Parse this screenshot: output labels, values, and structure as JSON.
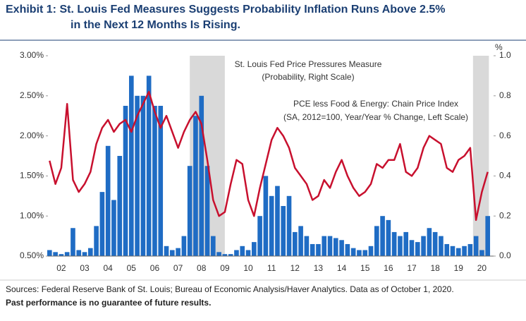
{
  "chart_data": {
    "type": "combo",
    "title_lines": [
      "Exhibit 1: St. Louis Fed Measures Suggests Probability Inflation Runs Above 2.5%",
      "in the Next 12 Months Is Rising."
    ],
    "annotations": [
      [
        "St. Louis Fed Price Pressures Measure",
        "(Probability, Right Scale)"
      ],
      [
        "PCE less Food & Energy: Chain Price Index",
        "(SA, 2012=100, Year/Year % Change, Left Scale)"
      ]
    ],
    "y2_unit_label": "%",
    "footer": [
      "Sources: Federal Reserve Bank of St. Louis; Bureau of Economic Analysis/Haver Analytics. Data as of October 1, 2020.",
      "Past performance is no guarantee of future results."
    ],
    "x": [
      2002.0,
      2002.25,
      2002.5,
      2002.75,
      2003.0,
      2003.25,
      2003.5,
      2003.75,
      2004.0,
      2004.25,
      2004.5,
      2004.75,
      2005.0,
      2005.25,
      2005.5,
      2005.75,
      2006.0,
      2006.25,
      2006.5,
      2006.75,
      2007.0,
      2007.25,
      2007.5,
      2007.75,
      2008.0,
      2008.25,
      2008.5,
      2008.75,
      2009.0,
      2009.25,
      2009.5,
      2009.75,
      2010.0,
      2010.25,
      2010.5,
      2010.75,
      2011.0,
      2011.25,
      2011.5,
      2011.75,
      2012.0,
      2012.25,
      2012.5,
      2012.75,
      2013.0,
      2013.25,
      2013.5,
      2013.75,
      2014.0,
      2014.25,
      2014.5,
      2014.75,
      2015.0,
      2015.25,
      2015.5,
      2015.75,
      2016.0,
      2016.25,
      2016.5,
      2016.75,
      2017.0,
      2017.25,
      2017.5,
      2017.75,
      2018.0,
      2018.25,
      2018.5,
      2018.75,
      2019.0,
      2019.25,
      2019.5,
      2019.75,
      2020.0,
      2020.25,
      2020.5,
      2020.75
    ],
    "series": [
      {
        "name": "St. Louis Fed Price Pressures Measure",
        "type": "bar",
        "axis": "y2",
        "color": "#1f6cc4",
        "values": [
          0.03,
          0.02,
          0.01,
          0.02,
          0.14,
          0.03,
          0.02,
          0.04,
          0.15,
          0.32,
          0.55,
          0.28,
          0.5,
          0.75,
          0.9,
          0.8,
          0.8,
          0.9,
          0.75,
          0.75,
          0.05,
          0.03,
          0.04,
          0.1,
          0.45,
          0.7,
          0.8,
          0.45,
          0.1,
          0.02,
          0.01,
          0.01,
          0.03,
          0.05,
          0.03,
          0.07,
          0.2,
          0.4,
          0.3,
          0.35,
          0.25,
          0.3,
          0.12,
          0.15,
          0.1,
          0.06,
          0.06,
          0.1,
          0.1,
          0.09,
          0.08,
          0.06,
          0.04,
          0.03,
          0.03,
          0.05,
          0.15,
          0.2,
          0.18,
          0.12,
          0.1,
          0.12,
          0.08,
          0.07,
          0.1,
          0.14,
          0.12,
          0.1,
          0.06,
          0.05,
          0.04,
          0.05,
          0.06,
          0.1,
          0.03,
          0.2
        ]
      },
      {
        "name": "PCE less Food & Energy: Chain Price Index",
        "type": "line",
        "axis": "y",
        "color": "#c8102e",
        "values": [
          1.69,
          1.4,
          1.6,
          2.4,
          1.45,
          1.3,
          1.4,
          1.55,
          1.9,
          2.1,
          2.2,
          2.05,
          2.15,
          2.2,
          2.05,
          2.25,
          2.4,
          2.55,
          2.3,
          2.1,
          2.25,
          2.05,
          1.85,
          2.05,
          2.2,
          2.3,
          2.15,
          1.7,
          1.2,
          1.0,
          1.05,
          1.4,
          1.7,
          1.65,
          1.2,
          1.0,
          1.35,
          1.65,
          1.95,
          2.1,
          2.0,
          1.85,
          1.6,
          1.5,
          1.4,
          1.2,
          1.25,
          1.45,
          1.35,
          1.55,
          1.7,
          1.5,
          1.35,
          1.25,
          1.3,
          1.4,
          1.65,
          1.6,
          1.7,
          1.7,
          1.9,
          1.55,
          1.5,
          1.6,
          1.85,
          2.0,
          1.95,
          1.9,
          1.6,
          1.55,
          1.7,
          1.75,
          1.85,
          0.95,
          1.3,
          1.55
        ]
      }
    ],
    "shaded_periods": [
      [
        2008.0,
        2009.5
      ],
      [
        2020.12,
        2020.8
      ]
    ],
    "shade_color": "#d9d9d9",
    "xlim": [
      2001.93,
      2021.0
    ],
    "xticks": [
      {
        "value": 2002.5,
        "label": "02"
      },
      {
        "value": 2003.5,
        "label": "03"
      },
      {
        "value": 2004.5,
        "label": "04"
      },
      {
        "value": 2005.5,
        "label": "05"
      },
      {
        "value": 2006.5,
        "label": "06"
      },
      {
        "value": 2007.5,
        "label": "07"
      },
      {
        "value": 2008.5,
        "label": "08"
      },
      {
        "value": 2009.5,
        "label": "09"
      },
      {
        "value": 2010.5,
        "label": "10"
      },
      {
        "value": 2011.5,
        "label": "11"
      },
      {
        "value": 2012.5,
        "label": "12"
      },
      {
        "value": 2013.5,
        "label": "13"
      },
      {
        "value": 2014.5,
        "label": "14"
      },
      {
        "value": 2015.5,
        "label": "15"
      },
      {
        "value": 2016.5,
        "label": "16"
      },
      {
        "value": 2017.5,
        "label": "17"
      },
      {
        "value": 2018.5,
        "label": "18"
      },
      {
        "value": 2019.5,
        "label": "19"
      },
      {
        "value": 2020.5,
        "label": "20"
      }
    ],
    "ylim": [
      0.5,
      3.0
    ],
    "yticks": [
      {
        "value": 0.5,
        "label": "0.50%"
      },
      {
        "value": 1.0,
        "label": "1.00%"
      },
      {
        "value": 1.5,
        "label": "1.50%"
      },
      {
        "value": 2.0,
        "label": "2.00%"
      },
      {
        "value": 2.5,
        "label": "2.50%"
      },
      {
        "value": 3.0,
        "label": "3.00%"
      }
    ],
    "y2lim": [
      0.0,
      1.0
    ],
    "y2ticks": [
      {
        "value": 0.0,
        "label": "0.0"
      },
      0.2,
      0.4,
      0.6,
      0.8,
      {
        "value": 1.0,
        "label": "1.0"
      }
    ]
  }
}
